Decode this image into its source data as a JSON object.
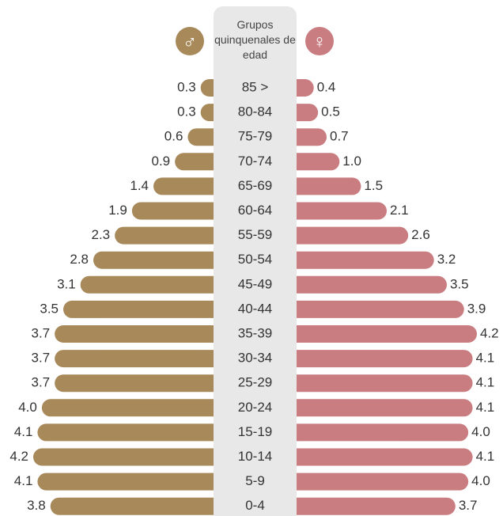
{
  "chart_data": {
    "type": "pyramid",
    "title": "Grupos quinquenales de edad",
    "categories": [
      "85 >",
      "80-84",
      "75-79",
      "70-74",
      "65-69",
      "60-64",
      "55-59",
      "50-54",
      "45-49",
      "40-44",
      "35-39",
      "30-34",
      "25-29",
      "20-24",
      "15-19",
      "10-14",
      "5-9",
      "0-4"
    ],
    "xlim": [
      0,
      4.2
    ],
    "series": [
      {
        "name": "♂",
        "color": "#a8895a",
        "values": [
          0.3,
          0.3,
          0.6,
          0.9,
          1.4,
          1.9,
          2.3,
          2.8,
          3.1,
          3.5,
          3.7,
          3.7,
          3.7,
          4.0,
          4.1,
          4.2,
          4.1,
          3.8
        ],
        "value_labels": [
          "0.3",
          "0.3",
          "0.6",
          "0.9",
          "1.4",
          "1.9",
          "2.3",
          "2.8",
          "3.1",
          "3.5",
          "3.7",
          "3.7",
          "3.7",
          "4.0",
          "4.1",
          "4.2",
          "4.1",
          "3.8"
        ]
      },
      {
        "name": "♀",
        "color": "#c97d80",
        "values": [
          0.4,
          0.5,
          0.7,
          1.0,
          1.5,
          2.1,
          2.6,
          3.2,
          3.5,
          3.9,
          4.2,
          4.1,
          4.1,
          4.1,
          4.0,
          4.1,
          4.0,
          3.7
        ],
        "value_labels": [
          "0.4",
          "0.5",
          "0.7",
          "1.0",
          "1.5",
          "2.1",
          "2.6",
          "3.2",
          "3.5",
          "3.9",
          "4.2",
          "4.1",
          "4.1",
          "4.1",
          "4.0",
          "4.1",
          "4.0",
          "3.7"
        ]
      }
    ]
  }
}
